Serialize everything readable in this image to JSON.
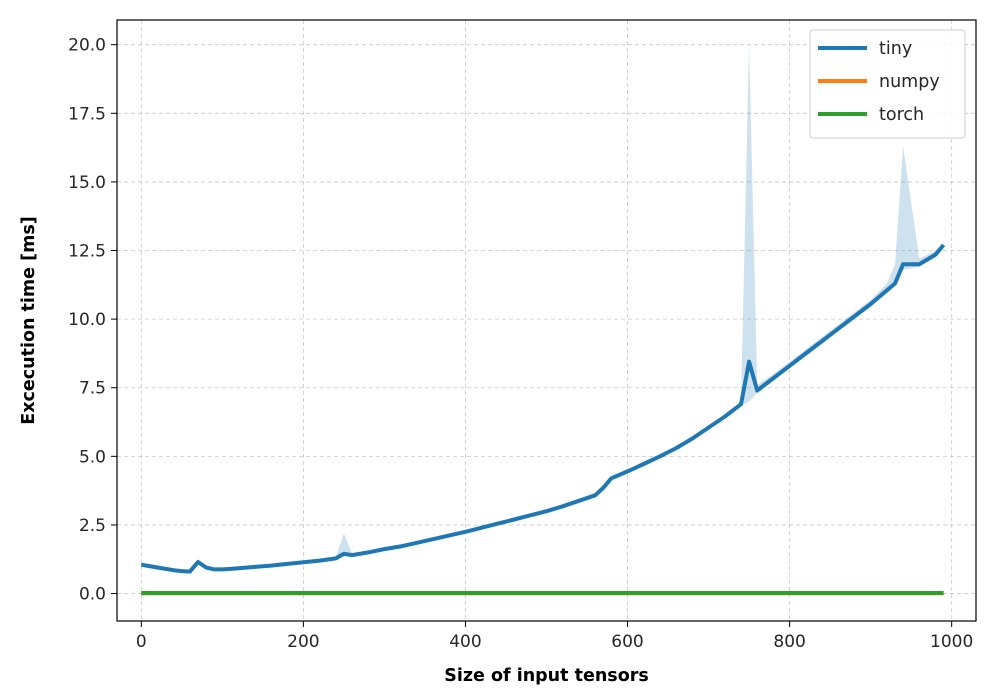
{
  "chart_data": {
    "type": "line",
    "xlabel": "Size of input tensors",
    "ylabel": "Excecution time [ms]",
    "xlim": [
      -30,
      1030
    ],
    "ylim": [
      -1.0,
      20.9
    ],
    "xticks": [
      0,
      200,
      400,
      600,
      800,
      1000
    ],
    "xtick_labels": [
      "0",
      "200",
      "400",
      "600",
      "800",
      "1000"
    ],
    "yticks": [
      0.0,
      2.5,
      5.0,
      7.5,
      10.0,
      12.5,
      15.0,
      17.5,
      20.0
    ],
    "ytick_labels": [
      "0.0",
      "2.5",
      "5.0",
      "7.5",
      "10.0",
      "12.5",
      "15.0",
      "17.5",
      "20.0"
    ],
    "grid": true,
    "legend_position": "top-right",
    "series": [
      {
        "name": "tiny",
        "color": "#1f77b4",
        "x": [
          0,
          10,
          20,
          30,
          40,
          50,
          60,
          70,
          80,
          90,
          100,
          110,
          120,
          140,
          160,
          180,
          200,
          220,
          240,
          250,
          260,
          280,
          300,
          320,
          340,
          360,
          380,
          400,
          420,
          440,
          460,
          480,
          500,
          520,
          540,
          560,
          570,
          580,
          600,
          620,
          640,
          660,
          680,
          700,
          720,
          740,
          750,
          760,
          780,
          800,
          820,
          840,
          860,
          880,
          900,
          920,
          930,
          940,
          960,
          980,
          990
        ],
        "y": [
          1.05,
          1.0,
          0.95,
          0.9,
          0.85,
          0.82,
          0.8,
          1.15,
          0.95,
          0.88,
          0.88,
          0.9,
          0.92,
          0.97,
          1.02,
          1.08,
          1.14,
          1.2,
          1.28,
          1.45,
          1.4,
          1.5,
          1.62,
          1.72,
          1.85,
          1.98,
          2.12,
          2.25,
          2.4,
          2.55,
          2.7,
          2.85,
          3.0,
          3.18,
          3.38,
          3.58,
          3.85,
          4.2,
          4.45,
          4.72,
          5.0,
          5.3,
          5.65,
          6.05,
          6.45,
          6.9,
          8.45,
          7.4,
          7.85,
          8.3,
          8.75,
          9.2,
          9.65,
          10.1,
          10.55,
          11.05,
          11.3,
          12.0,
          12.0,
          12.35,
          12.7
        ],
        "band_upper": [
          1.1,
          1.05,
          1.0,
          0.95,
          0.9,
          0.87,
          0.85,
          1.25,
          1.0,
          0.93,
          0.93,
          0.95,
          0.97,
          1.02,
          1.07,
          1.13,
          1.19,
          1.25,
          1.33,
          2.2,
          1.45,
          1.55,
          1.67,
          1.77,
          1.9,
          2.03,
          2.17,
          2.3,
          2.45,
          2.6,
          2.75,
          2.9,
          3.05,
          3.23,
          3.43,
          3.63,
          3.9,
          4.25,
          4.5,
          4.77,
          5.05,
          5.35,
          5.7,
          6.1,
          6.5,
          6.95,
          20.0,
          7.6,
          8.0,
          8.45,
          8.9,
          9.35,
          9.8,
          10.25,
          10.7,
          11.3,
          12.0,
          16.3,
          12.2,
          12.5,
          12.8
        ],
        "band_lower": [
          1.0,
          0.95,
          0.9,
          0.85,
          0.8,
          0.77,
          0.75,
          1.05,
          0.9,
          0.83,
          0.83,
          0.85,
          0.87,
          0.92,
          0.97,
          1.03,
          1.09,
          1.15,
          1.23,
          1.38,
          1.35,
          1.45,
          1.57,
          1.67,
          1.8,
          1.93,
          2.07,
          2.2,
          2.35,
          2.5,
          2.65,
          2.8,
          2.95,
          3.13,
          3.33,
          3.53,
          3.8,
          4.15,
          4.4,
          4.67,
          4.95,
          5.25,
          5.6,
          6.0,
          6.4,
          6.85,
          7.0,
          7.3,
          7.75,
          8.2,
          8.65,
          9.1,
          9.55,
          10.0,
          10.45,
          10.95,
          11.2,
          11.8,
          11.9,
          12.25,
          12.6
        ]
      },
      {
        "name": "numpy",
        "color": "#ff7f0e",
        "x": [
          0,
          100,
          200,
          300,
          400,
          500,
          600,
          700,
          800,
          900,
          990
        ],
        "y": [
          0.01,
          0.01,
          0.01,
          0.01,
          0.01,
          0.01,
          0.01,
          0.01,
          0.01,
          0.01,
          0.01
        ]
      },
      {
        "name": "torch",
        "color": "#2ca02c",
        "x": [
          0,
          100,
          200,
          300,
          400,
          500,
          600,
          700,
          800,
          900,
          990
        ],
        "y": [
          0.02,
          0.02,
          0.02,
          0.02,
          0.02,
          0.02,
          0.02,
          0.02,
          0.02,
          0.02,
          0.02
        ]
      }
    ]
  }
}
